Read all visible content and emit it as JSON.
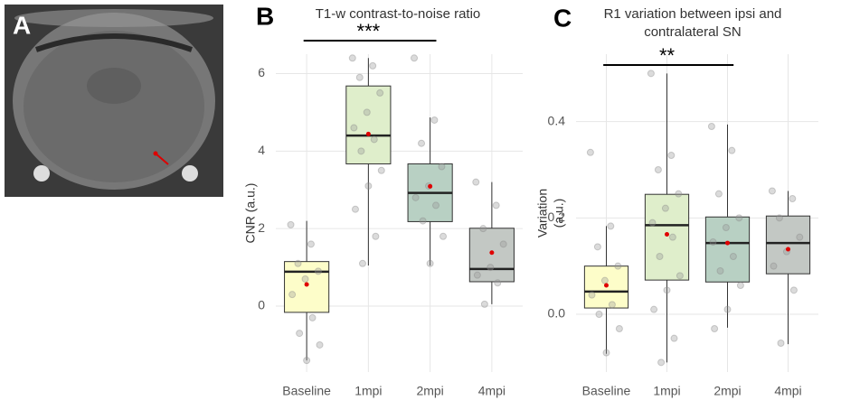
{
  "panel_label": "A",
  "chart_data": [
    {
      "type": "boxplot",
      "panel_label": "B",
      "title": [
        "T1-w contrast-to-noise ratio"
      ],
      "ylabel": [
        "CNR (a.u.)"
      ],
      "categories": [
        "Baseline",
        "1mpi",
        "2mpi",
        "4mpi"
      ],
      "colors": [
        "#fdfdc9",
        "#dfeecb",
        "#b8d0c3",
        "#c3c8c4"
      ],
      "whisker_low": [
        -1.4,
        1.05,
        1.05,
        0.05
      ],
      "q1": [
        -0.16,
        3.67,
        2.18,
        0.63
      ],
      "median": [
        0.89,
        4.4,
        2.92,
        0.96
      ],
      "q3": [
        1.15,
        5.68,
        3.67,
        2.01
      ],
      "whisker_high": [
        2.2,
        6.4,
        4.87,
        3.2
      ],
      "mean": [
        0.56,
        4.44,
        3.09,
        1.38
      ],
      "points": [
        [
          2.1,
          1.6,
          1.1,
          0.9,
          0.7,
          0.3,
          -0.3,
          -0.7,
          -1.0,
          -1.4
        ],
        [
          6.4,
          6.2,
          5.9,
          5.5,
          5.0,
          4.6,
          4.3,
          4.0,
          3.5,
          3.1,
          2.5,
          1.8,
          1.1
        ],
        [
          6.4,
          4.8,
          4.2,
          3.6,
          3.1,
          2.8,
          2.6,
          2.2,
          1.8,
          1.1
        ],
        [
          3.2,
          2.6,
          2.0,
          1.6,
          1.0,
          0.8,
          0.6,
          0.05
        ]
      ],
      "ylim": [
        -1.7,
        6.5
      ],
      "yticks": [
        0,
        2,
        4,
        6
      ],
      "grid": true,
      "significance": {
        "from": 0,
        "to": 2,
        "label": "***"
      }
    },
    {
      "type": "boxplot",
      "panel_label": "C",
      "title": [
        "R1 variation between ipsi and",
        "contralateral SN"
      ],
      "ylabel": [
        "Variation",
        "(a.u.)"
      ],
      "categories": [
        "Baseline",
        "1mpi",
        "2mpi",
        "4mpi"
      ],
      "colors": [
        "#fdfdc9",
        "#dfeecb",
        "#b8d0c3",
        "#c3c8c4"
      ],
      "whisker_low": [
        -0.082,
        -0.1,
        -0.028,
        -0.062
      ],
      "q1": [
        0.013,
        0.071,
        0.067,
        0.084
      ],
      "median": [
        0.047,
        0.185,
        0.148,
        0.148
      ],
      "q3": [
        0.1,
        0.249,
        0.202,
        0.204
      ],
      "whisker_high": [
        0.183,
        0.5,
        0.394,
        0.256
      ],
      "mean": [
        0.06,
        0.166,
        0.148,
        0.135
      ],
      "points": [
        [
          0.336,
          0.183,
          0.14,
          0.1,
          0.07,
          0.04,
          0.02,
          0.0,
          -0.03,
          -0.08
        ],
        [
          0.5,
          0.33,
          0.3,
          0.25,
          0.22,
          0.19,
          0.16,
          0.12,
          0.08,
          0.05,
          0.01,
          -0.05,
          -0.1
        ],
        [
          0.39,
          0.34,
          0.25,
          0.2,
          0.18,
          0.15,
          0.12,
          0.09,
          0.06,
          0.01,
          -0.03
        ],
        [
          0.256,
          0.24,
          0.2,
          0.16,
          0.13,
          0.1,
          0.05,
          -0.06
        ]
      ],
      "ylim": [
        -0.12,
        0.54
      ],
      "yticks": [
        {
          "value": 0,
          "label": "0.0"
        },
        {
          "value": 0.2,
          "label": "0.2"
        },
        {
          "value": 0.4,
          "label": "0.4"
        }
      ],
      "grid": true,
      "significance": {
        "from": 0,
        "to": 2,
        "label": "**"
      }
    }
  ]
}
